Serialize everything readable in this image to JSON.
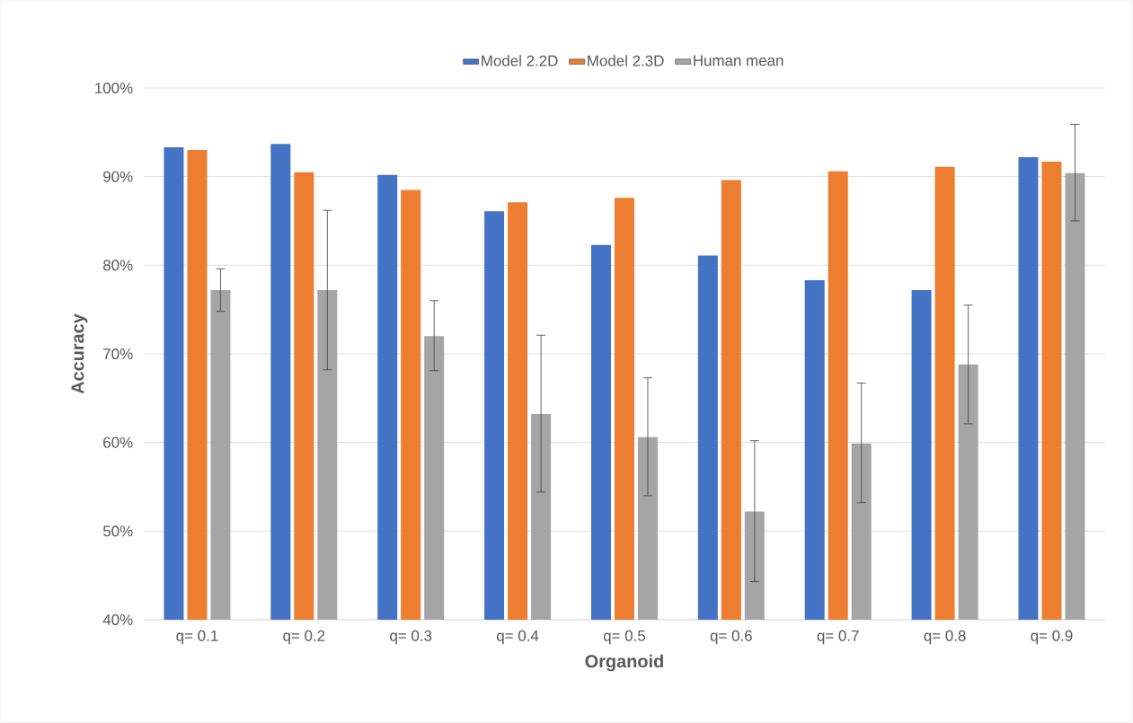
{
  "chart_data": {
    "type": "bar",
    "xlabel": "Organoid",
    "ylabel": "Accuracy",
    "categories": [
      "q= 0.1",
      "q= 0.2",
      "q= 0.3",
      "q= 0.4",
      "q= 0.5",
      "q= 0.6",
      "q= 0.7",
      "q= 0.8",
      "q= 0.9"
    ],
    "series": [
      {
        "name": "Model 2.2D",
        "color": "#4472c4",
        "values": [
          93.3,
          93.7,
          90.2,
          86.1,
          82.3,
          81.1,
          78.3,
          77.2,
          92.2
        ]
      },
      {
        "name": "Model 2.3D",
        "color": "#ed7d31",
        "values": [
          93.0,
          90.5,
          88.5,
          87.1,
          87.6,
          89.6,
          90.6,
          91.1,
          91.7
        ]
      },
      {
        "name": "Human mean",
        "color": "#a5a5a5",
        "values": [
          77.2,
          77.2,
          72.0,
          63.2,
          60.6,
          52.2,
          59.9,
          68.8,
          90.4
        ],
        "errors": [
          [
            74.8,
            79.6
          ],
          [
            68.2,
            86.2
          ],
          [
            68.1,
            76.0
          ],
          [
            54.4,
            72.1
          ],
          [
            54.0,
            67.3
          ],
          [
            44.3,
            60.2
          ],
          [
            53.2,
            66.7
          ],
          [
            62.1,
            75.5
          ],
          [
            85.0,
            95.9
          ]
        ]
      }
    ],
    "ylim": [
      40,
      100
    ],
    "yticks": [
      {
        "value": 40,
        "label": "40%"
      },
      {
        "value": 50,
        "label": "50%"
      },
      {
        "value": 60,
        "label": "60%"
      },
      {
        "value": 70,
        "label": "70%"
      },
      {
        "value": 80,
        "label": "80%"
      },
      {
        "value": 90,
        "label": "90%"
      },
      {
        "value": 100,
        "label": "100%"
      }
    ],
    "grid": "y",
    "legend": "top"
  }
}
